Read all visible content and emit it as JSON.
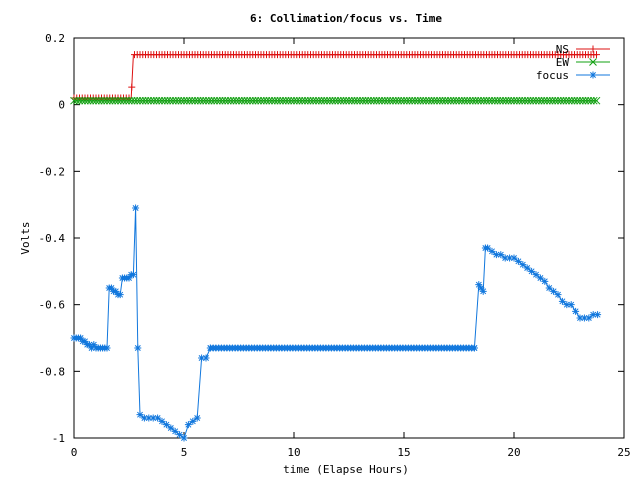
{
  "chart_data": {
    "type": "line",
    "title": "6: Collimation/focus vs. Time",
    "xlabel": "time (Elapse Hours)",
    "ylabel": "Volts",
    "xlim": [
      0,
      25
    ],
    "ylim": [
      -1,
      0.2
    ],
    "xticks": [
      0,
      5,
      10,
      15,
      20,
      25
    ],
    "yticks": [
      0.2,
      0,
      -0.2,
      -0.4,
      -0.6,
      -0.8,
      -1
    ],
    "grid": false,
    "legend_position": "top-right",
    "series": [
      {
        "name": "NS",
        "color": "#dd1111",
        "marker": "plus",
        "x": [
          0,
          2.5,
          2.6,
          2.7,
          23.8
        ],
        "y": [
          0.02,
          0.02,
          0.02,
          0.15,
          0.15
        ],
        "marker_start": 0,
        "marker_end": 23.8,
        "marker_step": 0.125
      },
      {
        "name": "EW",
        "color": "#11a011",
        "marker": "x",
        "x": [
          0,
          23.8
        ],
        "y": [
          0.012,
          0.012
        ],
        "marker_start": 0,
        "marker_end": 23.8,
        "marker_step": 0.125
      },
      {
        "name": "focus",
        "color": "#1177dd",
        "marker": "star",
        "x": [
          0,
          0.1,
          0.2,
          0.3,
          0.4,
          0.5,
          0.6,
          0.7,
          0.8,
          0.9,
          1.0,
          1.1,
          1.2,
          1.3,
          1.4,
          1.5,
          1.6,
          1.7,
          1.8,
          1.9,
          2.0,
          2.1,
          2.2,
          2.3,
          2.4,
          2.5,
          2.6,
          2.7,
          2.8,
          2.9,
          3.0,
          3.2,
          3.4,
          3.6,
          3.8,
          4.0,
          4.2,
          4.4,
          4.6,
          4.8,
          5.0,
          5.2,
          5.4,
          5.6,
          5.8,
          6.0,
          6.2
        ],
        "y": [
          -0.7,
          -0.7,
          -0.7,
          -0.7,
          -0.71,
          -0.71,
          -0.72,
          -0.72,
          -0.73,
          -0.72,
          -0.73,
          -0.73,
          -0.73,
          -0.73,
          -0.73,
          -0.73,
          -0.55,
          -0.55,
          -0.56,
          -0.56,
          -0.57,
          -0.57,
          -0.52,
          -0.52,
          -0.52,
          -0.52,
          -0.51,
          -0.51,
          -0.31,
          -0.73,
          -0.93,
          -0.94,
          -0.94,
          -0.94,
          -0.94,
          -0.95,
          -0.96,
          -0.97,
          -0.98,
          -0.99,
          -1.0,
          -0.96,
          -0.95,
          -0.94,
          -0.76,
          -0.76,
          -0.73
        ],
        "plateau": {
          "x_start": 6.2,
          "x_end": 18.2,
          "y": -0.73,
          "step": 0.125
        },
        "x2": [
          18.2,
          18.4,
          18.5,
          18.6,
          18.7,
          18.8,
          19.0,
          19.2,
          19.4,
          19.6,
          19.8,
          20.0,
          20.2,
          20.4,
          20.6,
          20.8,
          21.0,
          21.2,
          21.4,
          21.6,
          21.8,
          22.0,
          22.2,
          22.4,
          22.6,
          22.8,
          23.0,
          23.2,
          23.4,
          23.6,
          23.8
        ],
        "y2": [
          -0.73,
          -0.54,
          -0.55,
          -0.56,
          -0.43,
          -0.43,
          -0.44,
          -0.45,
          -0.45,
          -0.46,
          -0.46,
          -0.46,
          -0.47,
          -0.48,
          -0.49,
          -0.5,
          -0.51,
          -0.52,
          -0.53,
          -0.55,
          -0.56,
          -0.57,
          -0.59,
          -0.6,
          -0.6,
          -0.62,
          -0.64,
          -0.64,
          -0.64,
          -0.63,
          -0.63
        ]
      }
    ]
  }
}
